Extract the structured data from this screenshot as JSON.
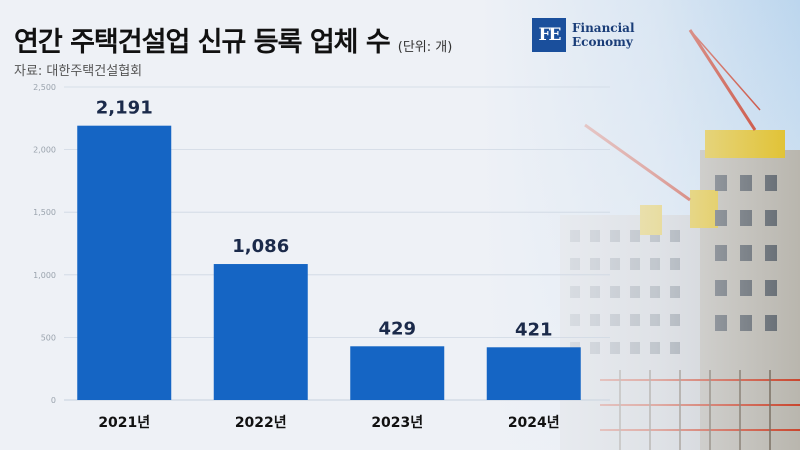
{
  "header": {
    "title": "연간 주택건설업 신규 등록 업체 수",
    "unit": "(단위: 개)",
    "source": "자료: 대한주택건설협회"
  },
  "logo": {
    "mark": "FE",
    "line1": "Financial",
    "line2": "Economy"
  },
  "colors": {
    "bar": "#1565c4",
    "value_label": "#1b2a4a",
    "grid": "#cfd8e3",
    "tick": "#9aa3ad"
  },
  "chart_data": {
    "type": "bar",
    "categories": [
      "2021년",
      "2022년",
      "2023년",
      "2024년"
    ],
    "values": [
      2191,
      1086,
      429,
      421
    ],
    "value_labels": [
      "2,191",
      "1,086",
      "429",
      "421"
    ],
    "yticks": [
      0,
      500,
      1000,
      1500,
      2000,
      2500
    ],
    "ytick_labels": [
      "0",
      "500",
      "1,000",
      "1,500",
      "2,000",
      "2,500"
    ],
    "ylim": [
      0,
      2500
    ],
    "grid": true,
    "title": "연간 주택건설업 신규 등록 업체 수",
    "xlabel": "",
    "ylabel": ""
  }
}
